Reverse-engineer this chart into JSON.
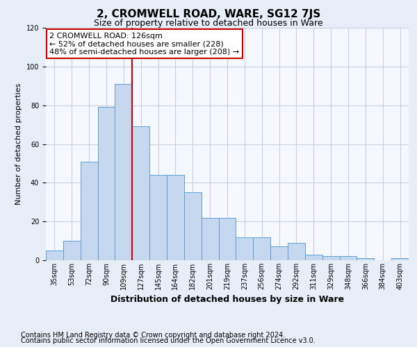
{
  "title": "2, CROMWELL ROAD, WARE, SG12 7JS",
  "subtitle": "Size of property relative to detached houses in Ware",
  "xlabel": "Distribution of detached houses by size in Ware",
  "ylabel": "Number of detached properties",
  "categories": [
    "35sqm",
    "53sqm",
    "72sqm",
    "90sqm",
    "109sqm",
    "127sqm",
    "145sqm",
    "164sqm",
    "182sqm",
    "201sqm",
    "219sqm",
    "237sqm",
    "256sqm",
    "274sqm",
    "292sqm",
    "311sqm",
    "329sqm",
    "348sqm",
    "366sqm",
    "384sqm",
    "403sqm"
  ],
  "values": [
    5,
    10,
    51,
    79,
    91,
    69,
    44,
    44,
    35,
    22,
    22,
    12,
    12,
    7,
    9,
    3,
    2,
    2,
    1,
    0,
    1
  ],
  "bar_color": "#c5d8f0",
  "bar_edge_color": "#5a9fd4",
  "vline_x": 4.5,
  "vline_color": "#cc0000",
  "annotation_text": "2 CROMWELL ROAD: 126sqm\n← 52% of detached houses are smaller (228)\n48% of semi-detached houses are larger (208) →",
  "annotation_box_facecolor": "#ffffff",
  "annotation_box_edgecolor": "#cc0000",
  "ylim": [
    0,
    120
  ],
  "yticks": [
    0,
    20,
    40,
    60,
    80,
    100,
    120
  ],
  "footer_line1": "Contains HM Land Registry data © Crown copyright and database right 2024.",
  "footer_line2": "Contains public sector information licensed under the Open Government Licence v3.0.",
  "fig_facecolor": "#e8eef8",
  "plot_facecolor": "#f5f8ff",
  "grid_color": "#c8d0e0",
  "title_fontsize": 11,
  "subtitle_fontsize": 9,
  "axis_label_fontsize": 8,
  "tick_fontsize": 7,
  "footer_fontsize": 7,
  "annot_fontsize": 8
}
